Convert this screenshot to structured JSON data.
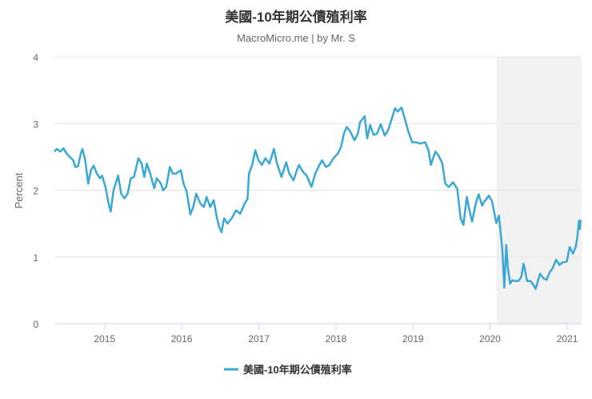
{
  "chart_data": {
    "type": "line",
    "title": "美國-10年期公債殖利率",
    "subtitle": "MacroMicro.me | by Mr. S",
    "ylabel": "Percent",
    "xlabel": "",
    "ylim": [
      0,
      4
    ],
    "xlim": [
      "2014-05-08",
      "2021-03-10"
    ],
    "yticks": [
      "0",
      "1",
      "2",
      "3",
      "4"
    ],
    "xticks": [
      "2015",
      "2016",
      "2017",
      "2018",
      "2019",
      "2020",
      "2021"
    ],
    "grid": true,
    "legend_position": "bottom",
    "shaded_region": {
      "start": "2020-02-01",
      "end": "2021-03-10",
      "color": "#f2f2f2"
    },
    "series": [
      {
        "name": "美國-10年期公債殖利率",
        "color": "#3aa7d4",
        "points": [
          [
            "2014-05-08",
            2.58
          ],
          [
            "2014-05-20",
            2.62
          ],
          [
            "2014-06-05",
            2.58
          ],
          [
            "2014-06-20",
            2.63
          ],
          [
            "2014-07-05",
            2.55
          ],
          [
            "2014-07-20",
            2.5
          ],
          [
            "2014-08-05",
            2.45
          ],
          [
            "2014-08-15",
            2.35
          ],
          [
            "2014-08-28",
            2.36
          ],
          [
            "2014-09-10",
            2.55
          ],
          [
            "2014-09-18",
            2.62
          ],
          [
            "2014-10-01",
            2.45
          ],
          [
            "2014-10-15",
            2.1
          ],
          [
            "2014-10-28",
            2.3
          ],
          [
            "2014-11-10",
            2.37
          ],
          [
            "2014-11-25",
            2.25
          ],
          [
            "2014-12-10",
            2.18
          ],
          [
            "2014-12-20",
            2.22
          ],
          [
            "2015-01-05",
            2.05
          ],
          [
            "2015-01-20",
            1.8
          ],
          [
            "2015-01-30",
            1.68
          ],
          [
            "2015-02-12",
            2.0
          ],
          [
            "2015-03-06",
            2.22
          ],
          [
            "2015-03-20",
            1.95
          ],
          [
            "2015-04-05",
            1.88
          ],
          [
            "2015-04-20",
            1.95
          ],
          [
            "2015-05-05",
            2.18
          ],
          [
            "2015-05-20",
            2.2
          ],
          [
            "2015-06-10",
            2.48
          ],
          [
            "2015-06-25",
            2.4
          ],
          [
            "2015-07-08",
            2.2
          ],
          [
            "2015-07-20",
            2.4
          ],
          [
            "2015-08-05",
            2.25
          ],
          [
            "2015-08-24",
            2.03
          ],
          [
            "2015-09-05",
            2.18
          ],
          [
            "2015-09-25",
            2.1
          ],
          [
            "2015-10-05",
            2.0
          ],
          [
            "2015-10-20",
            2.05
          ],
          [
            "2015-11-06",
            2.35
          ],
          [
            "2015-11-20",
            2.25
          ],
          [
            "2015-12-05",
            2.25
          ],
          [
            "2015-12-28",
            2.3
          ],
          [
            "2016-01-10",
            2.1
          ],
          [
            "2016-01-25",
            1.98
          ],
          [
            "2016-02-11",
            1.64
          ],
          [
            "2016-02-25",
            1.75
          ],
          [
            "2016-03-10",
            1.95
          ],
          [
            "2016-03-30",
            1.8
          ],
          [
            "2016-04-15",
            1.75
          ],
          [
            "2016-04-28",
            1.9
          ],
          [
            "2016-05-15",
            1.75
          ],
          [
            "2016-06-01",
            1.85
          ],
          [
            "2016-06-15",
            1.6
          ],
          [
            "2016-06-27",
            1.45
          ],
          [
            "2016-07-08",
            1.37
          ],
          [
            "2016-07-20",
            1.58
          ],
          [
            "2016-08-05",
            1.5
          ],
          [
            "2016-08-25",
            1.58
          ],
          [
            "2016-09-15",
            1.7
          ],
          [
            "2016-10-05",
            1.65
          ],
          [
            "2016-10-25",
            1.8
          ],
          [
            "2016-11-08",
            1.87
          ],
          [
            "2016-11-15",
            2.25
          ],
          [
            "2016-11-30",
            2.38
          ],
          [
            "2016-12-15",
            2.6
          ],
          [
            "2016-12-30",
            2.45
          ],
          [
            "2017-01-15",
            2.38
          ],
          [
            "2017-02-01",
            2.48
          ],
          [
            "2017-02-20",
            2.4
          ],
          [
            "2017-03-13",
            2.62
          ],
          [
            "2017-03-28",
            2.4
          ],
          [
            "2017-04-18",
            2.2
          ],
          [
            "2017-05-10",
            2.42
          ],
          [
            "2017-05-25",
            2.25
          ],
          [
            "2017-06-14",
            2.15
          ],
          [
            "2017-06-30",
            2.3
          ],
          [
            "2017-07-10",
            2.38
          ],
          [
            "2017-07-28",
            2.28
          ],
          [
            "2017-08-15",
            2.22
          ],
          [
            "2017-09-07",
            2.05
          ],
          [
            "2017-09-25",
            2.25
          ],
          [
            "2017-10-10",
            2.35
          ],
          [
            "2017-10-27",
            2.45
          ],
          [
            "2017-11-15",
            2.35
          ],
          [
            "2017-12-01",
            2.38
          ],
          [
            "2017-12-20",
            2.48
          ],
          [
            "2018-01-10",
            2.55
          ],
          [
            "2018-01-25",
            2.65
          ],
          [
            "2018-02-08",
            2.85
          ],
          [
            "2018-02-21",
            2.95
          ],
          [
            "2018-03-10",
            2.88
          ],
          [
            "2018-03-30",
            2.75
          ],
          [
            "2018-04-15",
            2.85
          ],
          [
            "2018-04-25",
            3.02
          ],
          [
            "2018-05-17",
            3.11
          ],
          [
            "2018-05-29",
            2.78
          ],
          [
            "2018-06-12",
            2.98
          ],
          [
            "2018-06-28",
            2.83
          ],
          [
            "2018-07-15",
            2.85
          ],
          [
            "2018-08-01",
            2.99
          ],
          [
            "2018-08-20",
            2.82
          ],
          [
            "2018-09-05",
            2.9
          ],
          [
            "2018-09-25",
            3.1
          ],
          [
            "2018-10-08",
            3.23
          ],
          [
            "2018-10-20",
            3.18
          ],
          [
            "2018-11-08",
            3.24
          ],
          [
            "2018-11-25",
            3.05
          ],
          [
            "2018-12-10",
            2.88
          ],
          [
            "2018-12-28",
            2.72
          ],
          [
            "2019-01-15",
            2.72
          ],
          [
            "2019-02-05",
            2.7
          ],
          [
            "2019-02-28",
            2.72
          ],
          [
            "2019-03-15",
            2.6
          ],
          [
            "2019-03-27",
            2.38
          ],
          [
            "2019-04-17",
            2.58
          ],
          [
            "2019-05-03",
            2.52
          ],
          [
            "2019-05-20",
            2.4
          ],
          [
            "2019-06-03",
            2.1
          ],
          [
            "2019-06-20",
            2.05
          ],
          [
            "2019-07-10",
            2.12
          ],
          [
            "2019-07-30",
            2.02
          ],
          [
            "2019-08-15",
            1.58
          ],
          [
            "2019-08-28",
            1.48
          ],
          [
            "2019-09-13",
            1.9
          ],
          [
            "2019-09-27",
            1.68
          ],
          [
            "2019-10-08",
            1.53
          ],
          [
            "2019-10-25",
            1.8
          ],
          [
            "2019-11-08",
            1.94
          ],
          [
            "2019-11-25",
            1.77
          ],
          [
            "2019-12-05",
            1.83
          ],
          [
            "2019-12-27",
            1.92
          ],
          [
            "2020-01-10",
            1.84
          ],
          [
            "2020-01-31",
            1.51
          ],
          [
            "2020-02-12",
            1.62
          ],
          [
            "2020-02-28",
            1.13
          ],
          [
            "2020-03-09",
            0.54
          ],
          [
            "2020-03-18",
            1.18
          ],
          [
            "2020-03-25",
            0.85
          ],
          [
            "2020-04-05",
            0.6
          ],
          [
            "2020-04-15",
            0.65
          ],
          [
            "2020-04-30",
            0.64
          ],
          [
            "2020-05-15",
            0.64
          ],
          [
            "2020-05-28",
            0.7
          ],
          [
            "2020-06-08",
            0.9
          ],
          [
            "2020-06-25",
            0.64
          ],
          [
            "2020-07-10",
            0.64
          ],
          [
            "2020-07-25",
            0.58
          ],
          [
            "2020-08-04",
            0.52
          ],
          [
            "2020-08-25",
            0.75
          ],
          [
            "2020-09-10",
            0.68
          ],
          [
            "2020-09-25",
            0.66
          ],
          [
            "2020-10-10",
            0.77
          ],
          [
            "2020-10-25",
            0.84
          ],
          [
            "2020-11-09",
            0.96
          ],
          [
            "2020-11-25",
            0.88
          ],
          [
            "2020-12-10",
            0.92
          ],
          [
            "2020-12-30",
            0.93
          ],
          [
            "2021-01-12",
            1.15
          ],
          [
            "2021-01-28",
            1.05
          ],
          [
            "2021-02-10",
            1.15
          ],
          [
            "2021-02-18",
            1.3
          ],
          [
            "2021-02-25",
            1.54
          ],
          [
            "2021-03-02",
            1.42
          ],
          [
            "2021-03-05",
            1.56
          ]
        ]
      }
    ]
  }
}
